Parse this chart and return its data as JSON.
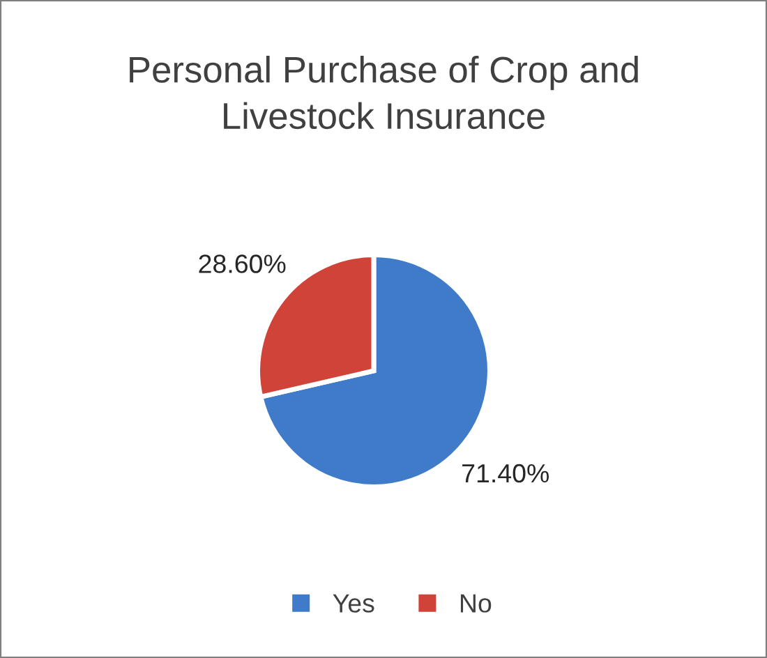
{
  "chart_data": {
    "type": "pie",
    "title": "Personal Purchase of Crop and Livestock Insurance",
    "categories": [
      "Yes",
      "No"
    ],
    "values": [
      71.4,
      28.6
    ],
    "colors": [
      "#3f7bc9",
      "#cf4339"
    ],
    "value_labels": [
      "71.40%",
      "28.60%"
    ],
    "legend": "bottom"
  }
}
